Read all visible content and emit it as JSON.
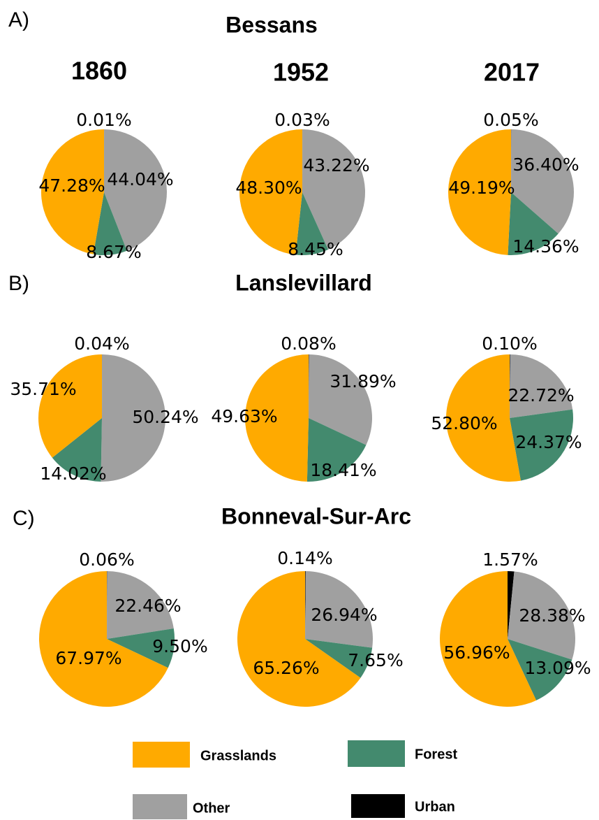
{
  "rows": [
    {
      "label": "A)",
      "title": "Bessans"
    },
    {
      "label": "B)",
      "title": "Lanslevillard"
    },
    {
      "label": "C)",
      "title": "Bonneval-Sur-Arc"
    }
  ],
  "columns": [
    "1860",
    "1952",
    "2017"
  ],
  "chart_data": [
    {
      "type": "pie",
      "categories": [
        "Urban",
        "Other",
        "Forest",
        "Grasslands"
      ],
      "colors": [
        "#000000",
        "#a0a0a0",
        "#438a6e",
        "#ffaa00"
      ],
      "values": [
        0.01,
        44.04,
        8.67,
        47.28
      ],
      "value_labels": [
        "0.01%",
        "44.04%",
        "8.67%",
        "47.28%"
      ]
    },
    {
      "type": "pie",
      "categories": [
        "Urban",
        "Other",
        "Forest",
        "Grasslands"
      ],
      "colors": [
        "#000000",
        "#a0a0a0",
        "#438a6e",
        "#ffaa00"
      ],
      "values": [
        0.03,
        43.22,
        8.45,
        48.3
      ],
      "value_labels": [
        "0.03%",
        "43.22%",
        "8.45%",
        "48.30%"
      ]
    },
    {
      "type": "pie",
      "categories": [
        "Urban",
        "Other",
        "Forest",
        "Grasslands"
      ],
      "colors": [
        "#000000",
        "#a0a0a0",
        "#438a6e",
        "#ffaa00"
      ],
      "values": [
        0.05,
        36.4,
        14.36,
        49.19
      ],
      "value_labels": [
        "0.05%",
        "36.40%",
        "14.36%",
        "49.19%"
      ]
    },
    {
      "type": "pie",
      "categories": [
        "Urban",
        "Other",
        "Forest",
        "Grasslands"
      ],
      "colors": [
        "#000000",
        "#a0a0a0",
        "#438a6e",
        "#ffaa00"
      ],
      "values": [
        0.04,
        50.24,
        14.02,
        35.71
      ],
      "value_labels": [
        "0.04%",
        "50.24%",
        "14.02%",
        "35.71%"
      ]
    },
    {
      "type": "pie",
      "categories": [
        "Urban",
        "Other",
        "Forest",
        "Grasslands"
      ],
      "colors": [
        "#000000",
        "#a0a0a0",
        "#438a6e",
        "#ffaa00"
      ],
      "values": [
        0.08,
        31.89,
        18.41,
        49.63
      ],
      "value_labels": [
        "0.08%",
        "31.89%",
        "18.41%",
        "49.63%"
      ]
    },
    {
      "type": "pie",
      "categories": [
        "Urban",
        "Other",
        "Forest",
        "Grasslands"
      ],
      "colors": [
        "#000000",
        "#a0a0a0",
        "#438a6e",
        "#ffaa00"
      ],
      "values": [
        0.1,
        22.72,
        24.37,
        52.8
      ],
      "value_labels": [
        "0.10%",
        "22.72%",
        "24.37%",
        "52.80%"
      ]
    },
    {
      "type": "pie",
      "categories": [
        "Urban",
        "Other",
        "Forest",
        "Grasslands"
      ],
      "colors": [
        "#000000",
        "#a0a0a0",
        "#438a6e",
        "#ffaa00"
      ],
      "values": [
        0.06,
        22.46,
        9.5,
        67.97
      ],
      "value_labels": [
        "0.06%",
        "22.46%",
        "9.50%",
        "67.97%"
      ]
    },
    {
      "type": "pie",
      "categories": [
        "Urban",
        "Other",
        "Forest",
        "Grasslands"
      ],
      "colors": [
        "#000000",
        "#a0a0a0",
        "#438a6e",
        "#ffaa00"
      ],
      "values": [
        0.14,
        26.94,
        7.65,
        65.26
      ],
      "value_labels": [
        "0.14%",
        "26.94%",
        "7.65%",
        "65.26%"
      ]
    },
    {
      "type": "pie",
      "categories": [
        "Urban",
        "Other",
        "Forest",
        "Grasslands"
      ],
      "colors": [
        "#000000",
        "#a0a0a0",
        "#438a6e",
        "#ffaa00"
      ],
      "values": [
        1.57,
        28.38,
        13.09,
        56.96
      ],
      "value_labels": [
        "1.57%",
        "28.38%",
        "13.09%",
        "56.96%"
      ]
    }
  ]
}
